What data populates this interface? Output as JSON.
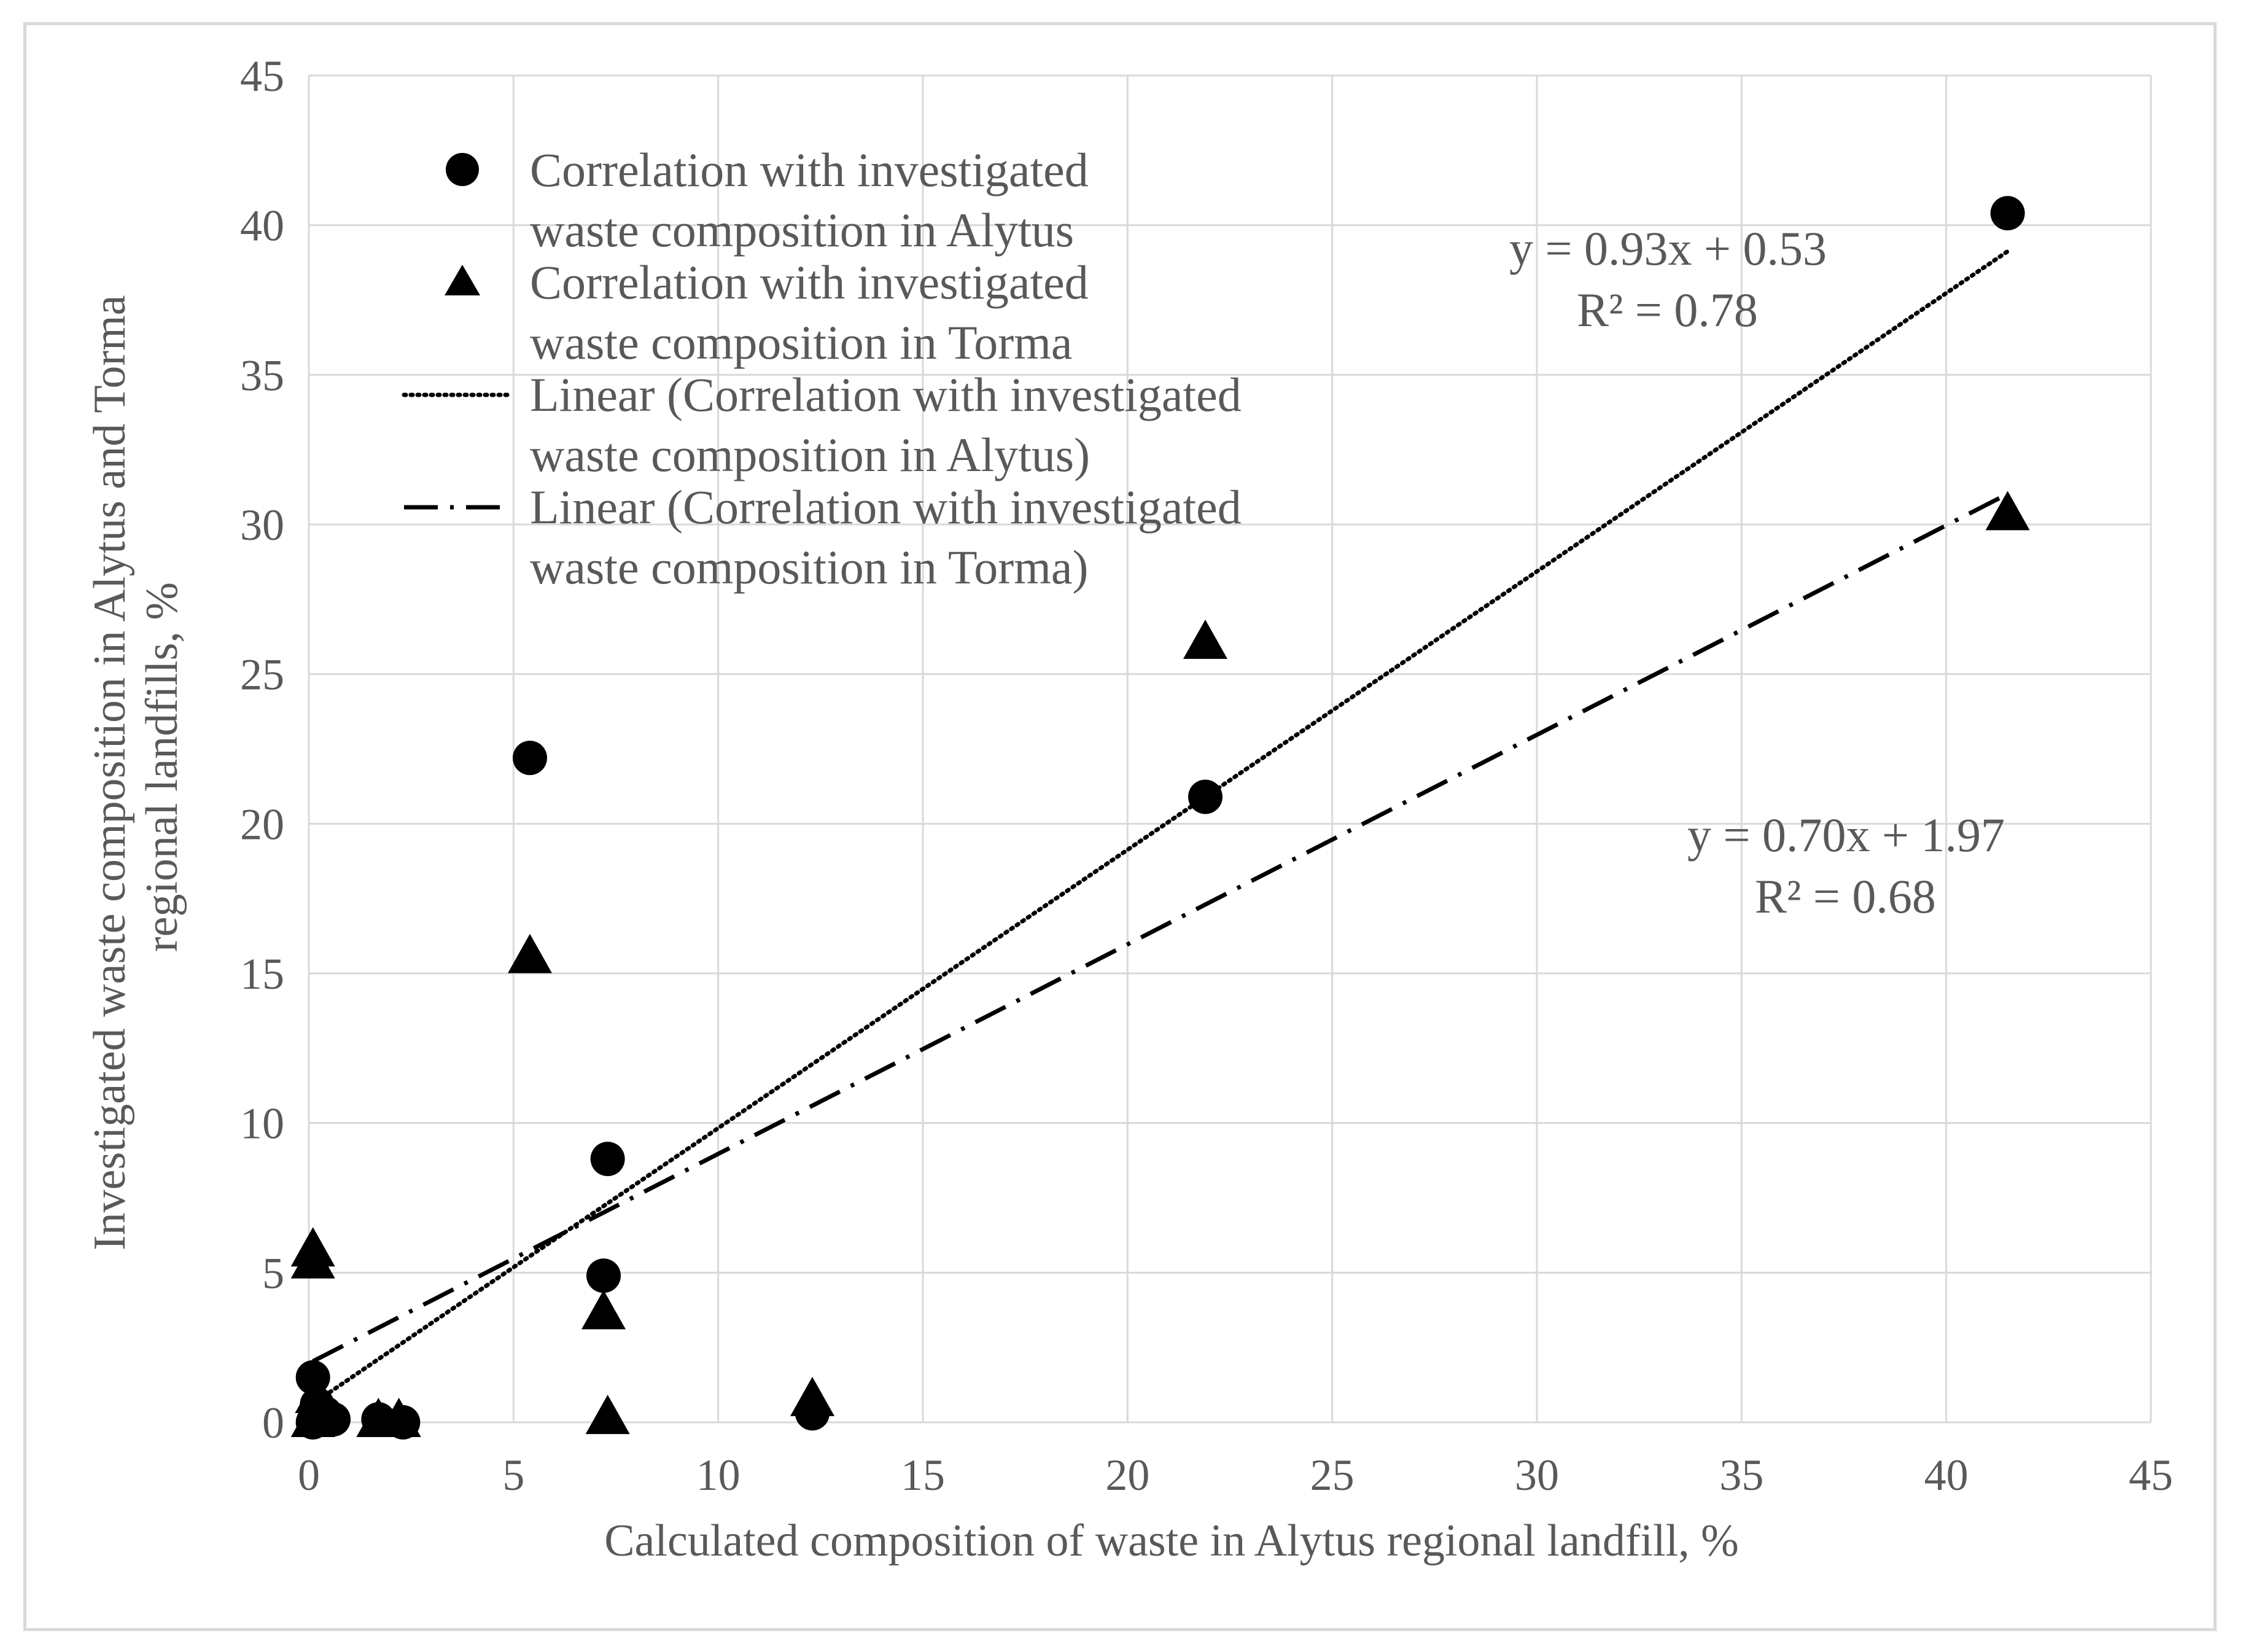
{
  "chart_data": {
    "type": "scatter",
    "xlabel": "Calculated composition of waste in Alytus regional  landfill, %",
    "ylabel_lines": [
      "Investigated  waste composition in Alytus and Torma",
      "regional landfills,  %"
    ],
    "xlim": [
      0,
      45
    ],
    "ylim": [
      0,
      45
    ],
    "xticks": [
      0,
      5,
      10,
      15,
      20,
      25,
      30,
      35,
      40,
      45
    ],
    "yticks": [
      0,
      5,
      10,
      15,
      20,
      25,
      30,
      35,
      40,
      45
    ],
    "grid": true,
    "legend_position": "top-left",
    "series": [
      {
        "name": "Correlation with investigated waste composition in Alytus",
        "legend_lines": [
          "Correlation with investigated",
          "waste composition in Alytus"
        ],
        "marker": "circle",
        "color": "#000000",
        "points": [
          [
            41.5,
            40.4
          ],
          [
            21.9,
            20.9
          ],
          [
            5.4,
            22.2
          ],
          [
            7.3,
            8.8
          ],
          [
            7.2,
            4.9
          ],
          [
            12.3,
            0.3
          ],
          [
            0.1,
            1.5
          ],
          [
            0.2,
            0.6
          ],
          [
            0.4,
            0.3
          ],
          [
            0.6,
            0.1
          ],
          [
            0.1,
            0.0
          ],
          [
            1.7,
            0.1
          ],
          [
            2.3,
            0.0
          ]
        ]
      },
      {
        "name": "Correlation with investigated waste composition in Torma",
        "legend_lines": [
          "Correlation with investigated",
          "waste composition in Torma"
        ],
        "marker": "triangle",
        "color": "#000000",
        "points": [
          [
            41.5,
            30.3
          ],
          [
            21.9,
            26.0
          ],
          [
            5.4,
            15.5
          ],
          [
            7.2,
            3.6
          ],
          [
            7.3,
            0.1
          ],
          [
            12.3,
            0.7
          ],
          [
            0.1,
            5.7
          ],
          [
            0.1,
            5.3
          ],
          [
            0.2,
            0.8
          ],
          [
            0.3,
            0.2
          ],
          [
            0.1,
            0.0
          ],
          [
            1.7,
            0.0
          ],
          [
            2.2,
            0.0
          ]
        ]
      }
    ],
    "trendlines": [
      {
        "name": "Linear (Correlation with investigated waste composition in Alytus)",
        "legend_lines": [
          "Linear (Correlation with investigated",
          "waste composition in Alytus)"
        ],
        "style": "dotted",
        "slope": 0.93,
        "intercept": 0.53,
        "x_range": [
          0.1,
          41.5
        ],
        "equation": "y = 0.93x + 0.53",
        "r2": "R² = 0.78"
      },
      {
        "name": "Linear (Correlation with investigated waste composition in Torma)",
        "legend_lines": [
          "Linear (Correlation with investigated",
          "waste composition in Torma)"
        ],
        "style": "dash-dot",
        "slope": 0.7,
        "intercept": 1.97,
        "x_range": [
          0.1,
          41.5
        ],
        "equation": "y = 0.70x + 1.97",
        "r2": "R² = 0.68"
      }
    ]
  }
}
